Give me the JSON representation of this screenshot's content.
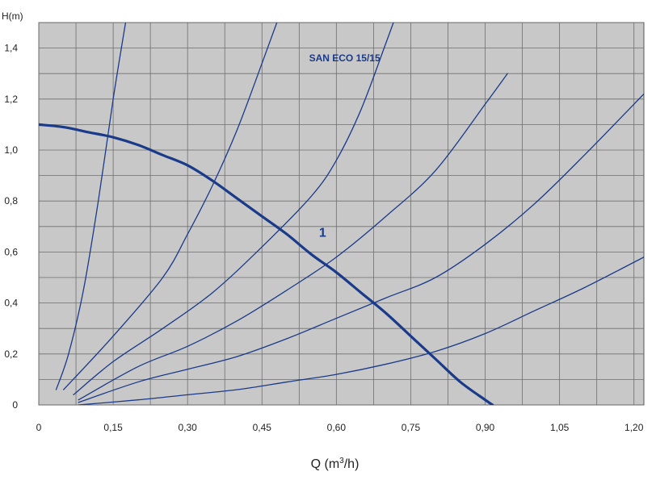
{
  "chart_data": {
    "type": "line",
    "title": "SAN ECO 15/15",
    "xlabel": "Q (m³/h)",
    "xlabel_main": "Q (m",
    "xlabel_sup": "3",
    "xlabel_tail": "/h)",
    "ylabel": "H(m)",
    "xlim": [
      0,
      1.22
    ],
    "ylim": [
      0,
      1.5
    ],
    "grid": true,
    "x_ticks": [
      0,
      0.15,
      0.3,
      0.45,
      0.6,
      0.75,
      0.9,
      1.05,
      1.2
    ],
    "x_tick_labels": [
      "0",
      "0,15",
      "0,30",
      "0,45",
      "0,60",
      "0,75",
      "0,90",
      "1,05",
      "1,20"
    ],
    "y_ticks": [
      0,
      0.2,
      0.4,
      0.6,
      0.8,
      1.0,
      1.2,
      1.4
    ],
    "y_tick_labels": [
      "0",
      "0,2",
      "0,4",
      "0,6",
      "0,8",
      "1,0",
      "1,2",
      "1,4"
    ],
    "annotation": "1",
    "series": [
      {
        "role": "pump-curve",
        "label": "1",
        "color": "#1a3a8a",
        "x": [
          0,
          0.05,
          0.1,
          0.15,
          0.2,
          0.25,
          0.3,
          0.35,
          0.4,
          0.45,
          0.5,
          0.55,
          0.6,
          0.65,
          0.7,
          0.75,
          0.8,
          0.85,
          0.9,
          0.915
        ],
        "y": [
          1.1,
          1.09,
          1.07,
          1.05,
          1.02,
          0.98,
          0.94,
          0.88,
          0.81,
          0.74,
          0.67,
          0.59,
          0.52,
          0.44,
          0.36,
          0.27,
          0.18,
          0.09,
          0.02,
          0.0
        ]
      },
      {
        "role": "system-curve",
        "color": "#1a3a8a",
        "x": [
          0.035,
          0.06,
          0.09,
          0.12,
          0.15,
          0.175
        ],
        "y": [
          0.06,
          0.2,
          0.45,
          0.8,
          1.2,
          1.5
        ]
      },
      {
        "role": "system-curve",
        "color": "#1a3a8a",
        "x": [
          0.05,
          0.15,
          0.25,
          0.3,
          0.35,
          0.4,
          0.45,
          0.48
        ],
        "y": [
          0.06,
          0.27,
          0.5,
          0.67,
          0.86,
          1.08,
          1.34,
          1.5
        ]
      },
      {
        "role": "system-curve",
        "color": "#1a3a8a",
        "x": [
          0.07,
          0.15,
          0.25,
          0.35,
          0.45,
          0.55,
          0.6,
          0.65,
          0.7,
          0.715
        ],
        "y": [
          0.04,
          0.17,
          0.3,
          0.44,
          0.62,
          0.82,
          0.96,
          1.16,
          1.42,
          1.5
        ]
      },
      {
        "role": "system-curve",
        "color": "#1a3a8a",
        "x": [
          0.08,
          0.2,
          0.3,
          0.4,
          0.5,
          0.6,
          0.7,
          0.8,
          0.9,
          0.945
        ],
        "y": [
          0.02,
          0.15,
          0.23,
          0.33,
          0.45,
          0.58,
          0.74,
          0.92,
          1.18,
          1.3
        ]
      },
      {
        "role": "system-curve",
        "color": "#1a3a8a",
        "x": [
          0.08,
          0.2,
          0.3,
          0.4,
          0.5,
          0.6,
          0.7,
          0.8,
          0.9,
          1.0,
          1.1,
          1.22
        ],
        "y": [
          0.01,
          0.09,
          0.14,
          0.19,
          0.26,
          0.34,
          0.42,
          0.5,
          0.63,
          0.79,
          0.98,
          1.22
        ]
      },
      {
        "role": "system-curve",
        "color": "#1a3a8a",
        "x": [
          0.08,
          0.2,
          0.3,
          0.4,
          0.5,
          0.6,
          0.7,
          0.8,
          0.9,
          1.0,
          1.1,
          1.22
        ],
        "y": [
          0.0,
          0.02,
          0.04,
          0.06,
          0.09,
          0.12,
          0.16,
          0.21,
          0.28,
          0.37,
          0.46,
          0.58
        ]
      }
    ],
    "colors": {
      "plot_background": "#c8c8c8",
      "grid": "#6e6e6e",
      "lines": "#1a3a8a",
      "title_text": "#1a3a8a"
    }
  }
}
